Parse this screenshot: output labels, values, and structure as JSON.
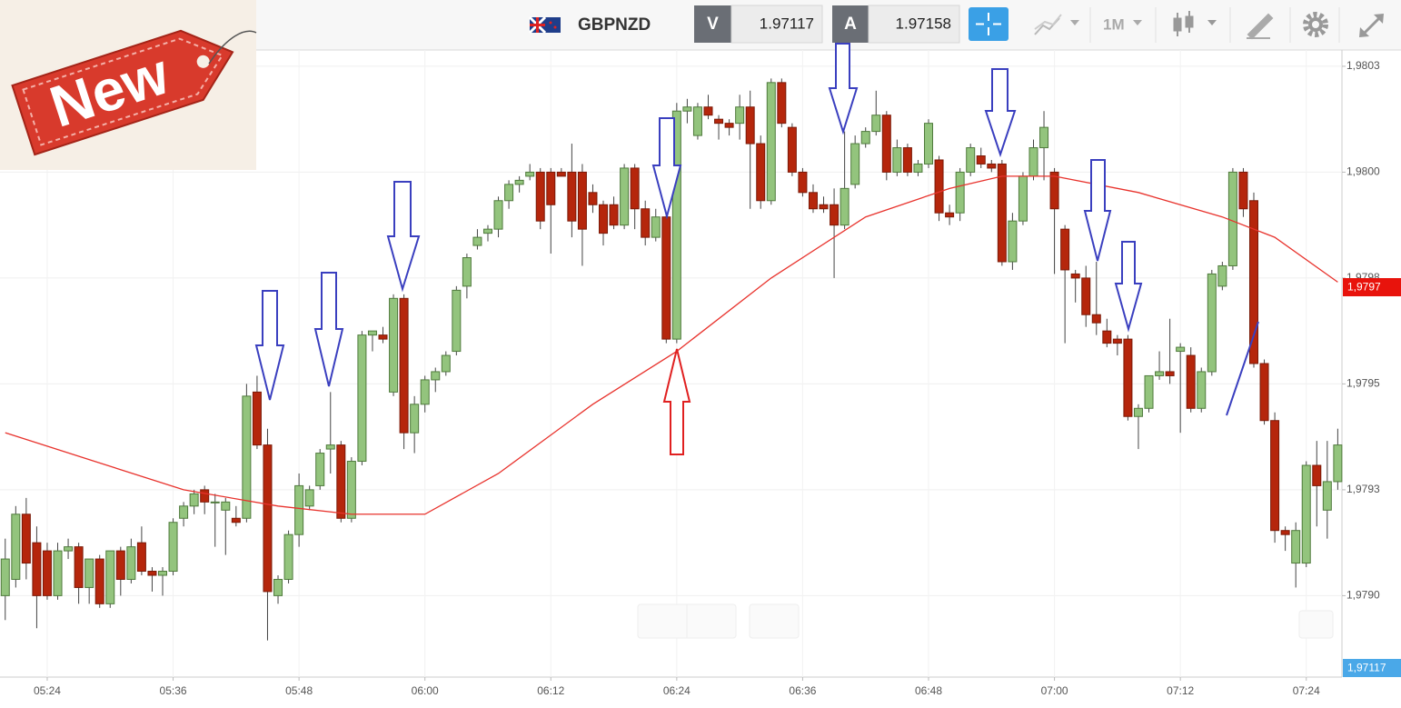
{
  "header": {
    "symbol": "GBPNZD",
    "bid_label": "V",
    "bid": "1.97117",
    "ask_label": "A",
    "ask": "1.97158",
    "timeframe": "1M"
  },
  "badge": "New",
  "price_tags": [
    "1,9797",
    "1,97117"
  ],
  "chart_data": {
    "type": "candlestick",
    "up_color": "#93c47d",
    "down_color": "#b5260c",
    "open": [
      1.979,
      1.97904,
      1.9792,
      1.97913,
      1.97911,
      1.979,
      1.97911,
      1.97912,
      1.97902,
      1.97909,
      1.97898,
      1.97911,
      1.97904,
      1.97913,
      1.97906,
      1.97905,
      1.97906,
      1.97919,
      1.97922,
      1.97926,
      1.97923,
      1.97921,
      1.97919,
      1.97919,
      1.9795,
      1.97937,
      1.979,
      1.97904,
      1.97915,
      1.97922,
      1.97927,
      1.97936,
      1.97937,
      1.97919,
      1.97933,
      1.97964,
      1.97964,
      1.9795,
      1.97973,
      1.9794,
      1.97947,
      1.97953,
      1.97955,
      1.9796,
      1.97976,
      1.97986,
      1.97989,
      1.9799,
      1.97997,
      1.98001,
      1.98003,
      1.98004,
      1.98004,
      1.98004,
      1.98004,
      1.98004,
      1.97999,
      1.97996,
      1.97996,
      1.97991,
      1.98005,
      1.97995,
      1.97988,
      1.97993,
      1.97963,
      1.98019,
      1.98013,
      1.9802,
      1.98017,
      1.98016,
      1.98016,
      1.9802,
      1.98011,
      1.97997,
      1.98026,
      1.98015,
      1.98004,
      1.97999,
      1.97996,
      1.97996,
      1.97991,
      1.98001,
      1.98011,
      1.98014,
      1.98018,
      1.98004,
      1.9801,
      1.98004,
      1.98006,
      1.98007,
      1.97994,
      1.97994,
      1.98004,
      1.98008,
      1.98006,
      1.98006,
      1.97982,
      1.97992,
      1.98003,
      1.9801,
      1.98004,
      1.9799,
      1.97979,
      1.97978,
      1.97969,
      1.97965,
      1.97963,
      1.97963,
      1.97944,
      1.97946,
      1.97954,
      1.97955,
      1.9796,
      1.97959,
      1.97946,
      1.97955,
      1.97976,
      1.97981,
      1.98004,
      1.97997,
      1.97957,
      1.97943,
      1.97916,
      1.97908,
      1.97908,
      1.97932,
      1.97921,
      1.97928
    ],
    "high": [
      1.97914,
      1.97922,
      1.97924,
      1.97917,
      1.97913,
      1.97913,
      1.97914,
      1.97913,
      1.97909,
      1.9791,
      1.97911,
      1.97912,
      1.97914,
      1.97917,
      1.97907,
      1.97907,
      1.97919,
      1.97923,
      1.97926,
      1.97927,
      1.97925,
      1.97924,
      1.97922,
      1.97952,
      1.97954,
      1.97941,
      1.97905,
      1.97916,
      1.9793,
      1.97927,
      1.97936,
      1.9795,
      1.97938,
      1.97934,
      1.97965,
      1.97965,
      1.97966,
      1.97974,
      1.97974,
      1.97949,
      1.97954,
      1.97956,
      1.9796,
      1.97976,
      1.97984,
      1.9799,
      1.97991,
      1.97998,
      1.98002,
      1.98003,
      1.98006,
      1.98005,
      1.98005,
      1.98005,
      1.98011,
      1.98006,
      1.98001,
      1.97997,
      1.97998,
      1.98006,
      1.98006,
      1.97997,
      1.97995,
      1.98001,
      1.98021,
      1.98022,
      1.98021,
      1.98023,
      1.98018,
      1.98017,
      1.98023,
      1.98024,
      1.98013,
      1.98027,
      1.98027,
      1.98016,
      1.98005,
      1.98001,
      1.97998,
      1.98,
      1.98014,
      1.98013,
      1.98015,
      1.98024,
      1.98019,
      1.98012,
      1.98011,
      1.98007,
      1.98017,
      1.98008,
      1.97996,
      1.98005,
      1.98011,
      1.9801,
      1.98007,
      1.98007,
      1.97994,
      1.98004,
      1.98012,
      1.98019,
      1.98005,
      1.97991,
      1.9798,
      1.97981,
      1.97982,
      1.97968,
      1.97964,
      1.97964,
      1.97947,
      1.97954,
      1.9796,
      1.97968,
      1.97962,
      1.97961,
      1.97956,
      1.9798,
      1.97982,
      1.98005,
      1.98005,
      1.97999,
      1.97958,
      1.97945,
      1.97917,
      1.97918,
      1.97933,
      1.97938,
      1.97938,
      1.97941
    ],
    "low": [
      1.97894,
      1.97902,
      1.97904,
      1.97892,
      1.97899,
      1.97899,
      1.97909,
      1.97898,
      1.97898,
      1.97897,
      1.97897,
      1.979,
      1.97903,
      1.97905,
      1.97901,
      1.979,
      1.97905,
      1.97917,
      1.9792,
      1.9792,
      1.97912,
      1.9791,
      1.97917,
      1.97918,
      1.97936,
      1.97889,
      1.97898,
      1.97903,
      1.97912,
      1.97921,
      1.97926,
      1.9793,
      1.97918,
      1.97918,
      1.97932,
      1.9796,
      1.97962,
      1.97949,
      1.97936,
      1.97935,
      1.97945,
      1.9795,
      1.97954,
      1.97959,
      1.97973,
      1.97985,
      1.97987,
      1.97988,
      1.97995,
      1.97999,
      1.98002,
      1.9799,
      1.97984,
      1.98003,
      1.97988,
      1.97981,
      1.97994,
      1.97986,
      1.9799,
      1.9799,
      1.9799,
      1.97986,
      1.97987,
      1.97962,
      1.97962,
      1.98016,
      1.98012,
      1.98017,
      1.98012,
      1.98013,
      1.98012,
      1.97995,
      1.97995,
      1.97996,
      1.98015,
      1.98003,
      1.97998,
      1.97994,
      1.97994,
      1.97978,
      1.9799,
      1.98,
      1.9801,
      1.98013,
      1.98002,
      1.98003,
      1.98003,
      1.98003,
      1.98005,
      1.97992,
      1.97991,
      1.97992,
      1.98003,
      1.98005,
      1.98004,
      1.97981,
      1.9798,
      1.97991,
      1.98002,
      1.98002,
      1.97979,
      1.97962,
      1.97972,
      1.97966,
      1.97964,
      1.97961,
      1.97959,
      1.97943,
      1.97936,
      1.97945,
      1.97953,
      1.97952,
      1.9794,
      1.97945,
      1.97945,
      1.97954,
      1.97975,
      1.9798,
      1.97993,
      1.97956,
      1.97942,
      1.97913,
      1.97911,
      1.97902,
      1.97907,
      1.97917,
      1.97914,
      1.97926
    ],
    "close": [
      1.97909,
      1.9792,
      1.97908,
      1.979,
      1.979,
      1.97911,
      1.97912,
      1.97902,
      1.97909,
      1.97898,
      1.97911,
      1.97904,
      1.97912,
      1.97906,
      1.97905,
      1.97906,
      1.97918,
      1.97922,
      1.97925,
      1.97923,
      1.97923,
      1.97923,
      1.97918,
      1.97949,
      1.97937,
      1.97901,
      1.97904,
      1.97915,
      1.97927,
      1.97926,
      1.97935,
      1.97937,
      1.97919,
      1.97933,
      1.97964,
      1.97965,
      1.97963,
      1.97973,
      1.9794,
      1.97947,
      1.97953,
      1.97955,
      1.97959,
      1.97975,
      1.97983,
      1.97988,
      1.9799,
      1.97997,
      1.98001,
      1.98002,
      1.98004,
      1.97992,
      1.97996,
      1.98003,
      1.97992,
      1.9799,
      1.97996,
      1.97989,
      1.97991,
      1.98005,
      1.97995,
      1.97988,
      1.97993,
      1.97963,
      1.98019,
      1.9802,
      1.9802,
      1.98018,
      1.98016,
      1.98015,
      1.9802,
      1.98011,
      1.97997,
      1.98026,
      1.98016,
      1.98004,
      1.97999,
      1.97995,
      1.97995,
      1.97991,
      1.98,
      1.98011,
      1.98014,
      1.98018,
      1.98004,
      1.9801,
      1.98004,
      1.98006,
      1.98016,
      1.97994,
      1.97993,
      1.98004,
      1.9801,
      1.98006,
      1.98005,
      1.97982,
      1.97992,
      1.98003,
      1.9801,
      1.98015,
      1.97995,
      1.9798,
      1.97978,
      1.97969,
      1.97967,
      1.97962,
      1.97962,
      1.97944,
      1.97946,
      1.97954,
      1.97955,
      1.97954,
      1.97961,
      1.97946,
      1.97955,
      1.97979,
      1.97981,
      1.98004,
      1.97995,
      1.97957,
      1.97943,
      1.97916,
      1.97915,
      1.97916,
      1.97932,
      1.97927,
      1.97928,
      1.97937
    ],
    "moving_average": {
      "color": "#e8322c",
      "x": [
        0,
        17,
        26,
        33,
        40,
        47,
        56,
        64,
        73,
        82,
        90,
        95,
        100,
        108,
        116,
        121,
        127
      ],
      "values": [
        1.9794,
        1.97926,
        1.97922,
        1.9792,
        1.9792,
        1.9793,
        1.97947,
        1.9796,
        1.97978,
        1.97993,
        1.98,
        1.98003,
        1.98003,
        1.97999,
        1.97993,
        1.97988,
        1.97977
      ]
    },
    "xlim": [
      -0.5,
      127.4
    ],
    "xticks": [
      {
        "value": 4,
        "label": "05:24"
      },
      {
        "value": 16,
        "label": "05:36"
      },
      {
        "value": 28,
        "label": "05:48"
      },
      {
        "value": 40,
        "label": "06:00"
      },
      {
        "value": 52,
        "label": "06:12"
      },
      {
        "value": 64,
        "label": "06:24"
      },
      {
        "value": 76,
        "label": "06:36"
      },
      {
        "value": 88,
        "label": "06:48"
      },
      {
        "value": 100,
        "label": "07:00"
      },
      {
        "value": 112,
        "label": "07:12"
      },
      {
        "value": 124,
        "label": "07:24"
      }
    ],
    "ylim": [
      1.9788,
      1.98034
    ],
    "yticks": [
      {
        "value": 1.979,
        "label": "1,9790"
      },
      {
        "value": 1.97926,
        "label": "1,9793"
      },
      {
        "value": 1.97952,
        "label": "1,9795"
      },
      {
        "value": 1.97978,
        "label": "1,9798"
      },
      {
        "value": 1.98004,
        "label": "1,9800"
      },
      {
        "value": 1.9803,
        "label": "1,9803"
      }
    ],
    "grid": true
  }
}
